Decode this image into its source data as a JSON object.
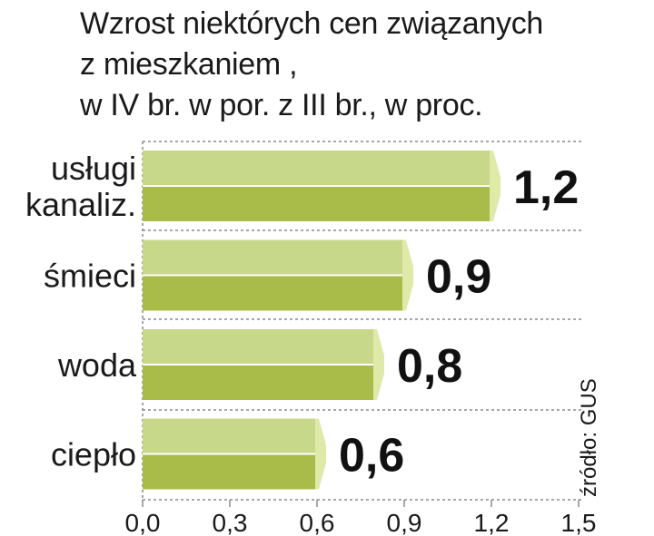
{
  "title_lines": [
    "Wzrost niektórych cen związanych",
    "z mieszkaniem ,",
    "w IV br. w por. z III br., w proc."
  ],
  "source": "źródło: GUS",
  "colors": {
    "bar_top": "#c8d88a",
    "bar_bottom": "#a9bb48",
    "bar_end": "#dfe9a8",
    "grid": "#8a8a8a",
    "text": "#1a1a1a"
  },
  "chart_data": {
    "type": "bar",
    "orientation": "horizontal",
    "title": "Wzrost niektórych cen związanych z mieszkaniem , w IV br. w por. z III br., w proc.",
    "categories": [
      [
        "usługi",
        "kanaliz."
      ],
      [
        "śmieci"
      ],
      [
        "woda"
      ],
      [
        "ciepło"
      ]
    ],
    "values": [
      1.2,
      0.9,
      0.8,
      0.6
    ],
    "value_labels": [
      "1,2",
      "0,9",
      "0,8",
      "0,6"
    ],
    "xlim": [
      0,
      1.5
    ],
    "xticks": [
      0,
      0.3,
      0.6,
      0.9,
      1.2,
      1.5
    ],
    "xtick_labels": [
      "0,0",
      "0,3",
      "0,6",
      "0,9",
      "1,2",
      "1,5"
    ],
    "grid": true,
    "xlabel": "",
    "ylabel": ""
  }
}
